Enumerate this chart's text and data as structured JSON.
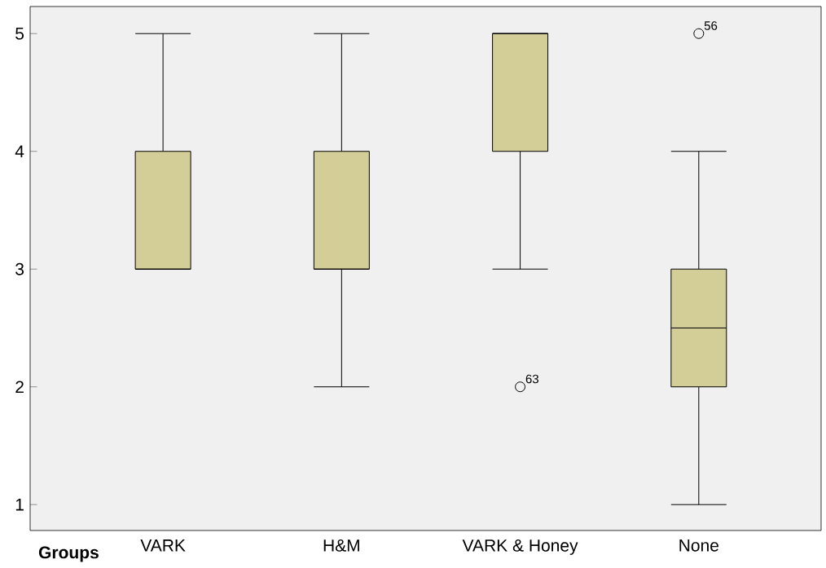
{
  "chart_data": {
    "type": "box",
    "xlabel": "Groups",
    "categories": [
      "VARK",
      "H&M",
      "VARK & Honey",
      "None"
    ],
    "boxes": [
      {
        "low": 3,
        "q1": 3,
        "median": 3,
        "q3": 4,
        "high": 5
      },
      {
        "low": 2,
        "q1": 3,
        "median": 3,
        "q3": 4,
        "high": 5
      },
      {
        "low": 3,
        "q1": 4,
        "median": 5,
        "q3": 5,
        "high": 5,
        "outliers": [
          2
        ]
      },
      {
        "low": 1,
        "q1": 2,
        "median": 2.5,
        "q3": 3,
        "high": 4,
        "outliers": [
          5
        ]
      }
    ],
    "color": "#d3ce97",
    "marker": "circle",
    "annotations": [
      "63",
      "56"
    ],
    "ylim": [
      0.78,
      5.23
    ],
    "yticks": [
      1,
      2,
      3,
      4,
      5
    ]
  }
}
